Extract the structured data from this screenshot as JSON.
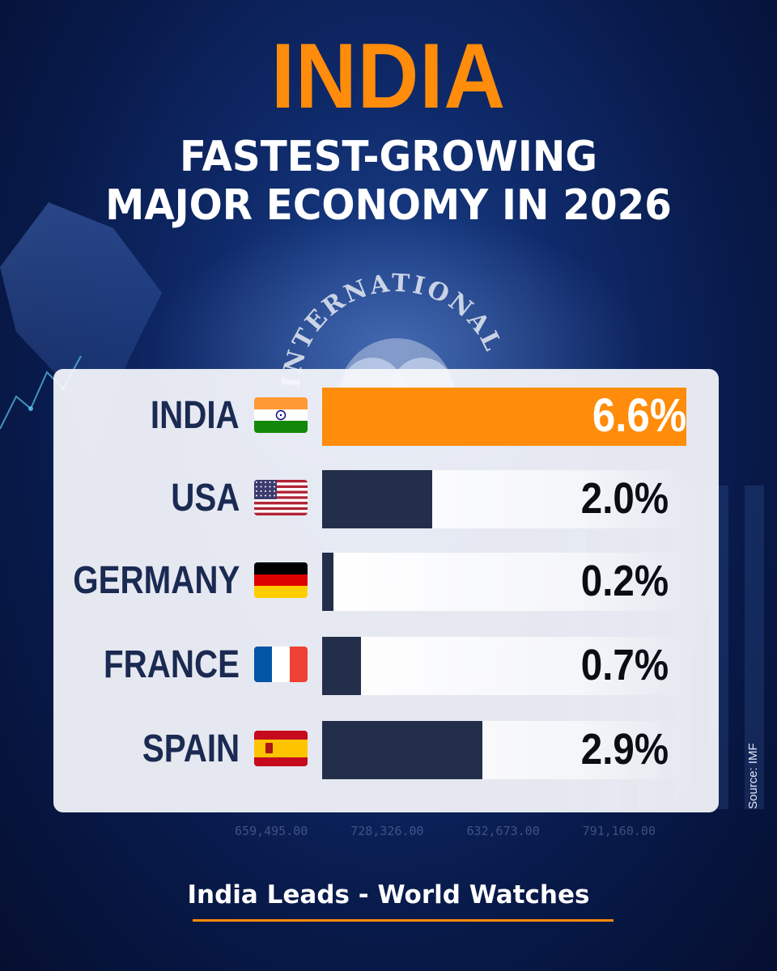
{
  "title": "INDIA",
  "subtitle_line1": "FASTEST-GROWING",
  "subtitle_line2": "MAJOR ECONOMY IN 2026",
  "emblem_text": "INTERNATIONAL",
  "footer": "India Leads - World Watches",
  "source": "Source: IMF",
  "colors": {
    "accent": "#ff8c0a",
    "bar": "#232f4a",
    "label": "#1a2a52"
  },
  "background_numbers": [
    "659,495.00",
    "728,326.00",
    "632,673.00",
    "791,160.00"
  ],
  "chart_data": {
    "type": "bar",
    "orientation": "horizontal",
    "categories": [
      "INDIA",
      "USA",
      "GERMANY",
      "FRANCE",
      "SPAIN"
    ],
    "values": [
      6.6,
      2.0,
      0.2,
      0.7,
      2.9
    ],
    "labels": [
      "6.6%",
      "2.0%",
      "0.2%",
      "0.7%",
      "2.9%"
    ],
    "flags": [
      "india-flag-icon",
      "usa-flag-icon",
      "germany-flag-icon",
      "france-flag-icon",
      "spain-flag-icon"
    ],
    "highlight": "INDIA",
    "xlim": [
      0,
      6.6
    ],
    "grid": false
  }
}
